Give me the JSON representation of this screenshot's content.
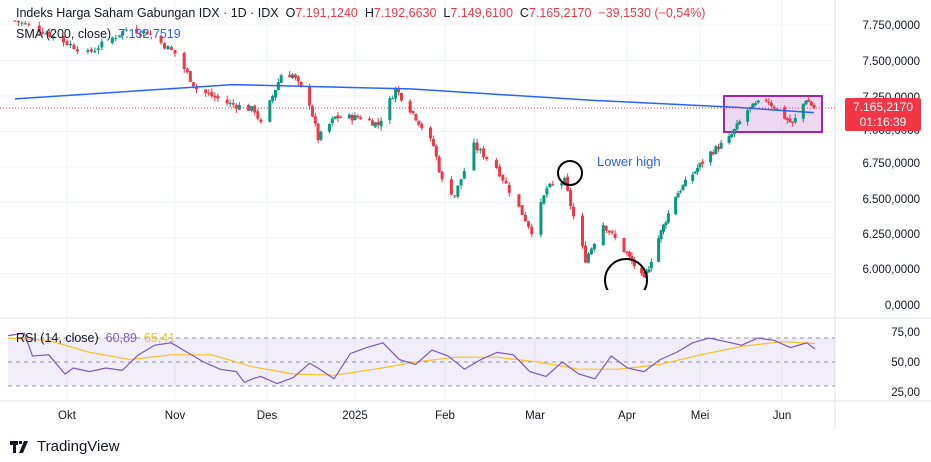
{
  "legend": {
    "symbol": "Indeks Harga Saham Gabungan IDX · 1D · IDX",
    "open_label": "O",
    "open": "7.191,1240",
    "high_label": "H",
    "high": "7.192,6630",
    "low_label": "L",
    "low": "7.149,6100",
    "close_label": "C",
    "close": "7.165,2170",
    "change": "−39,1530 (−0,54%)",
    "sma_label": "SMA (200, close)",
    "sma_value": "7.132,7519",
    "rsi_label": "RSI (14, close)",
    "rsi_value": "60,89",
    "rsi_ma_value": "65,41"
  },
  "price_tag": {
    "price": "7.165,2170",
    "countdown": "01:16:39"
  },
  "annotation": {
    "text": "Lower high"
  },
  "brand": "TradingView",
  "colors": {
    "up": "#089981",
    "down": "#f23645",
    "sma": "#2962ff",
    "rsi": "#7e57c2",
    "rsi_ma": "#f7c325",
    "box": "#9c27b0",
    "annotation_text": "#2962ff"
  },
  "chart_data": [
    {
      "type": "candlestick",
      "price_ticks": [
        "7.750,0000",
        "7.500,0000",
        "7.250,0000",
        "7.000,0000",
        "6.750,0000",
        "6.500,0000",
        "6.250,0000",
        "6.000,0000",
        "0,0000"
      ],
      "time_ticks": [
        "Okt",
        "Nov",
        "Des",
        "2025",
        "Feb",
        "Mar",
        "Apr",
        "Mei",
        "Jun"
      ],
      "approx_close": [
        [
          "2024-09-16",
          7780
        ],
        [
          "2024-09-23",
          7720
        ],
        [
          "2024-10-07",
          7550
        ],
        [
          "2024-10-18",
          7720
        ],
        [
          "2024-10-24",
          7700
        ],
        [
          "2024-11-01",
          7550
        ],
        [
          "2024-11-08",
          7300
        ],
        [
          "2024-11-18",
          7200
        ],
        [
          "2024-11-27",
          7150
        ],
        [
          "2024-11-29",
          7050
        ],
        [
          "2024-12-06",
          7400
        ],
        [
          "2024-12-10",
          7400
        ],
        [
          "2024-12-16",
          7200
        ],
        [
          "2024-12-19",
          6950
        ],
        [
          "2024-12-25",
          7100
        ],
        [
          "2025-01-03",
          7100
        ],
        [
          "2025-01-09",
          7050
        ],
        [
          "2025-01-15",
          7300
        ],
        [
          "2025-01-22",
          7100
        ],
        [
          "2025-01-28",
          6900
        ],
        [
          "2025-01-31",
          6650
        ],
        [
          "2025-02-04",
          6550
        ],
        [
          "2025-02-10",
          6900
        ],
        [
          "2025-02-17",
          6750
        ],
        [
          "2025-02-28",
          6300
        ],
        [
          "2025-03-05",
          6600
        ],
        [
          "2025-03-11",
          6650
        ],
        [
          "2025-03-14",
          6400
        ],
        [
          "2025-03-18",
          6100
        ],
        [
          "2025-03-24",
          6350
        ],
        [
          "2025-04-08",
          5950
        ],
        [
          "2025-04-14",
          6250
        ],
        [
          "2025-04-21",
          6550
        ],
        [
          "2025-04-28",
          6700
        ],
        [
          "2025-05-05",
          6850
        ],
        [
          "2025-05-12",
          6950
        ],
        [
          "2025-05-19",
          7150
        ],
        [
          "2025-05-26",
          7230
        ],
        [
          "2025-06-02",
          7100
        ],
        [
          "2025-06-05",
          7050
        ],
        [
          "2025-06-10",
          7230
        ],
        [
          "2025-06-13",
          7165
        ]
      ],
      "sma_200": [
        [
          "2024-09-16",
          7230
        ],
        [
          "2024-11-20",
          7330
        ],
        [
          "2025-01-20",
          7300
        ],
        [
          "2025-03-20",
          7220
        ],
        [
          "2025-05-15",
          7170
        ],
        [
          "2025-06-13",
          7132.75
        ]
      ],
      "last_price": 7165.217
    },
    {
      "type": "line",
      "y_ticks": [
        "75,00",
        "50,00",
        "25,00"
      ],
      "band": [
        30,
        70
      ],
      "rsi": [
        [
          0,
          72
        ],
        [
          4,
          74
        ],
        [
          6,
          55
        ],
        [
          10,
          56
        ],
        [
          14,
          40
        ],
        [
          16,
          45
        ],
        [
          20,
          42
        ],
        [
          24,
          45
        ],
        [
          28,
          43
        ],
        [
          32,
          56
        ],
        [
          36,
          64
        ],
        [
          40,
          66
        ],
        [
          44,
          58
        ],
        [
          48,
          50
        ],
        [
          52,
          44
        ],
        [
          56,
          42
        ],
        [
          58,
          33
        ],
        [
          60,
          36
        ],
        [
          62,
          38
        ],
        [
          66,
          32
        ],
        [
          70,
          37
        ],
        [
          74,
          49
        ],
        [
          76,
          45
        ],
        [
          80,
          36
        ],
        [
          84,
          57
        ],
        [
          88,
          62
        ],
        [
          92,
          66
        ],
        [
          96,
          52
        ],
        [
          100,
          48
        ],
        [
          104,
          60
        ],
        [
          108,
          55
        ],
        [
          112,
          44
        ],
        [
          116,
          52
        ],
        [
          120,
          58
        ],
        [
          124,
          56
        ],
        [
          128,
          42
        ],
        [
          132,
          38
        ],
        [
          136,
          50
        ],
        [
          140,
          40
        ],
        [
          144,
          36
        ],
        [
          148,
          55
        ],
        [
          152,
          45
        ],
        [
          156,
          42
        ],
        [
          160,
          52
        ],
        [
          164,
          58
        ],
        [
          168,
          66
        ],
        [
          172,
          70
        ],
        [
          176,
          67
        ],
        [
          180,
          64
        ],
        [
          184,
          70
        ],
        [
          188,
          68
        ],
        [
          192,
          62
        ],
        [
          196,
          66
        ],
        [
          198,
          60.89
        ]
      ],
      "rsi_ma": [
        [
          0,
          70
        ],
        [
          10,
          68
        ],
        [
          20,
          58
        ],
        [
          30,
          52
        ],
        [
          40,
          56
        ],
        [
          50,
          56
        ],
        [
          60,
          46
        ],
        [
          70,
          40
        ],
        [
          80,
          39
        ],
        [
          90,
          44
        ],
        [
          100,
          50
        ],
        [
          110,
          54
        ],
        [
          120,
          54
        ],
        [
          130,
          50
        ],
        [
          140,
          44
        ],
        [
          150,
          44
        ],
        [
          160,
          48
        ],
        [
          170,
          56
        ],
        [
          180,
          63
        ],
        [
          190,
          67
        ],
        [
          198,
          65.41
        ]
      ]
    }
  ]
}
